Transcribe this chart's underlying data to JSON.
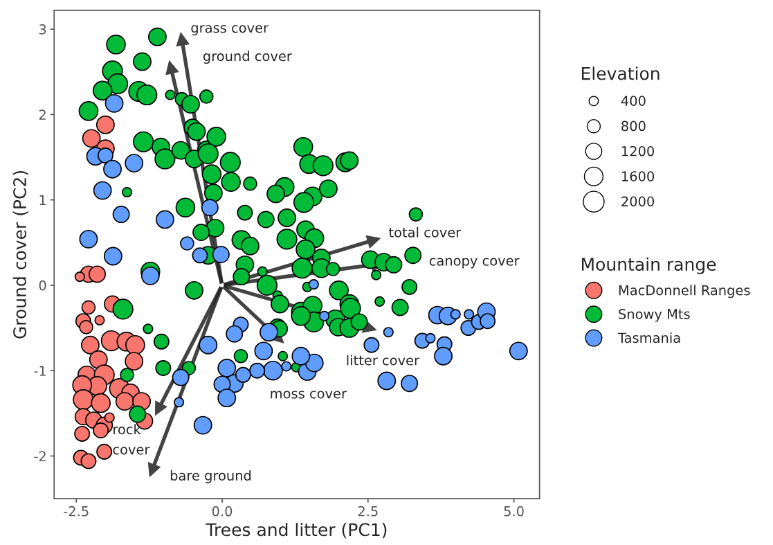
{
  "chart_data": {
    "type": "bubble",
    "xlabel": "Trees and litter (PC1)",
    "ylabel": "Ground cover (PC2)",
    "legend_title": [
      "Elevation",
      "Mountain range"
    ],
    "size_legend": [
      400,
      800,
      1200,
      1600,
      2000
    ],
    "xlim": [
      -2.88,
      5.44
    ],
    "ylim": [
      -2.5,
      3.22
    ],
    "xticks": [
      -2.5,
      {
        "value": 0,
        "label": "0.0"
      },
      2.5,
      {
        "value": 5,
        "label": "5.0"
      }
    ],
    "yticks": [
      -2,
      -1,
      0,
      1,
      2,
      3
    ],
    "grid": false,
    "legend": "right",
    "marker": "circle",
    "series": [
      {
        "name": "MacDonnell Ranges",
        "color": "#f8766d",
        "x": [
          -2.0,
          -2.24,
          -2.0,
          -2.29,
          -2.14,
          -2.44,
          -2.29,
          -1.88,
          -2.38,
          -2.1,
          -2.33,
          -2.26,
          -1.9,
          -1.64,
          -1.49,
          -1.51,
          -2.12,
          -2.32,
          -2.02,
          -2.14,
          -1.76,
          -1.57,
          -2.4,
          -2.38,
          -2.08,
          -1.67,
          -1.38,
          -1.33,
          -2.38,
          -2.2,
          -2.02,
          -1.93,
          -2.4,
          -2.08,
          -2.42,
          -2.29,
          -2.02
        ],
        "values": [
          1.88,
          1.72,
          1.6,
          0.13,
          0.13,
          0.1,
          -0.26,
          -0.22,
          -0.42,
          -0.41,
          -0.49,
          -0.7,
          -0.65,
          -0.66,
          -0.7,
          -0.89,
          -0.87,
          -1.05,
          -1.05,
          -1.18,
          -1.21,
          -1.26,
          -1.17,
          -1.34,
          -1.38,
          -1.36,
          -1.36,
          -1.59,
          -1.54,
          -1.58,
          -1.64,
          -1.55,
          -1.74,
          -1.7,
          -2.02,
          -2.06,
          -1.95
        ],
        "sizes": [
          1400,
          1400,
          1400,
          1200,
          1200,
          400,
          800,
          1200,
          1000,
          400,
          800,
          1400,
          1800,
          1600,
          1600,
          1400,
          1400,
          1400,
          1800,
          1600,
          1800,
          1400,
          1600,
          1800,
          1600,
          1400,
          1400,
          1200,
          1200,
          1200,
          1200,
          400,
          1000,
          1000,
          1000,
          1000,
          1000
        ]
      },
      {
        "name": "Snowy Mts",
        "color": "#00ba38",
        "x": [
          -1.11,
          -1.82,
          -1.37,
          -1.88,
          -1.79,
          -1.43,
          -1.29,
          -2.05,
          -2.29,
          -0.89,
          -0.69,
          -0.54,
          -0.27,
          -0.51,
          -0.44,
          -1.35,
          -1.05,
          -0.98,
          -0.71,
          -0.26,
          -0.48,
          -0.1,
          -0.24,
          -0.18,
          0.14,
          0.15,
          0.48,
          1.39,
          1.49,
          1.73,
          2.11,
          2.18,
          1.07,
          0.92,
          1.55,
          1.82,
          1.4,
          0.39,
          0.75,
          1.11,
          1.11,
          1.43,
          1.58,
          0.33,
          0.48,
          1.43,
          1.7,
          1.37,
          1.7,
          1.9,
          0.39,
          0.33,
          0.69,
          0.77,
          0.95,
          0.99,
          1.35,
          1.55,
          2.0,
          2.18,
          1.94,
          2.54,
          2.77,
          2.94,
          3.27,
          3.32,
          2.64,
          3.21,
          2.7,
          3.05,
          1.46,
          -0.63,
          -0.15,
          -0.12,
          -0.36,
          -0.24,
          -1.23,
          -0.48,
          -1.63,
          -1.7,
          -1.27,
          -1.04,
          -1.01,
          -1.63,
          -1.45,
          -0.57,
          0.32,
          0.95,
          2.2,
          1.99,
          2.18,
          2.35,
          1.57,
          1.35,
          0.98,
          1.27,
          1.04
        ],
        "values": [
          2.91,
          2.82,
          2.62,
          2.51,
          2.36,
          2.27,
          2.23,
          2.28,
          2.04,
          2.23,
          2.18,
          2.12,
          2.21,
          1.85,
          1.8,
          1.68,
          1.62,
          1.48,
          1.58,
          1.58,
          1.48,
          1.74,
          1.54,
          1.3,
          1.44,
          1.21,
          1.19,
          1.62,
          1.42,
          1.4,
          1.44,
          1.46,
          1.15,
          1.07,
          1.04,
          1.13,
          0.97,
          0.85,
          0.77,
          0.79,
          0.54,
          0.65,
          0.55,
          0.53,
          0.46,
          0.42,
          0.32,
          0.2,
          0.2,
          0.19,
          0.24,
          0.1,
          0.16,
          0.0,
          -0.12,
          -0.22,
          -0.31,
          -0.24,
          -0.06,
          -0.22,
          -0.4,
          0.3,
          0.27,
          0.24,
          0.35,
          0.83,
          0.12,
          -0.02,
          -0.19,
          -0.26,
          -0.02,
          0.91,
          1.08,
          0.67,
          0.62,
          0.35,
          0.16,
          -0.06,
          1.09,
          -0.28,
          -0.51,
          -0.66,
          -0.97,
          -1.05,
          -1.51,
          -0.97,
          -0.83,
          -0.49,
          -0.27,
          -0.49,
          -0.5,
          -0.43,
          -0.43,
          -0.36,
          -0.51,
          -0.96,
          -0.83
        ],
        "sizes": [
          1400,
          1600,
          1400,
          1800,
          1800,
          1800,
          1800,
          1600,
          1600,
          400,
          800,
          1400,
          800,
          1200,
          1400,
          1800,
          1400,
          1800,
          1400,
          1600,
          1400,
          1600,
          1800,
          1600,
          1800,
          1600,
          800,
          1600,
          1600,
          1800,
          1600,
          1400,
          1600,
          1400,
          1600,
          1400,
          1800,
          1000,
          1200,
          1400,
          1800,
          1400,
          1600,
          1600,
          1400,
          1600,
          1400,
          1800,
          1600,
          800,
          1400,
          1200,
          400,
          1800,
          400,
          1400,
          1600,
          1600,
          1600,
          1600,
          1600,
          1400,
          1400,
          1200,
          1200,
          800,
          400,
          1000,
          400,
          1200,
          400,
          1600,
          1400,
          1400,
          1200,
          1400,
          1600,
          1400,
          400,
          1800,
          400,
          1000,
          1000,
          800,
          1200,
          800,
          800,
          1200,
          1800,
          1400,
          1600,
          1200,
          1800,
          1600,
          1200,
          400,
          400
        ]
      },
      {
        "name": "Tasmania",
        "color": "#619cff",
        "x": [
          -1.85,
          -2.17,
          -2.0,
          -1.88,
          -1.51,
          -2.05,
          -1.73,
          -0.98,
          -0.21,
          -2.29,
          -1.87,
          -1.23,
          -0.6,
          -0.38,
          -0.02,
          -0.24,
          -0.71,
          -0.33,
          -0.74,
          0.32,
          0.21,
          0.8,
          0.71,
          0.87,
          0.08,
          0.21,
          0.0,
          0.08,
          0.6,
          0.36,
          1.1,
          1.46,
          1.58,
          1.35,
          1.57,
          1.75,
          2.56,
          2.85,
          3.43,
          3.57,
          3.81,
          3.79,
          2.82,
          3.21,
          5.08,
          3.69,
          3.87,
          4.0,
          4.23,
          4.22,
          4.4,
          4.53,
          4.55
        ],
        "values": [
          2.13,
          1.51,
          1.52,
          1.36,
          1.43,
          1.11,
          0.83,
          0.77,
          0.91,
          0.54,
          0.34,
          0.11,
          0.49,
          0.35,
          0.36,
          -0.7,
          -1.08,
          -1.64,
          -1.37,
          -0.46,
          -0.57,
          -0.55,
          -0.77,
          -1.0,
          -0.97,
          -1.15,
          -1.16,
          -1.32,
          -1.0,
          -1.05,
          -0.95,
          -1.01,
          -0.91,
          -0.83,
          0.01,
          -0.36,
          -0.7,
          -0.55,
          -0.65,
          -0.62,
          -0.69,
          -0.83,
          -1.12,
          -1.15,
          -0.77,
          -0.35,
          -0.36,
          -0.34,
          -0.34,
          -0.5,
          -0.43,
          -0.31,
          -0.42
        ],
        "sizes": [
          1400,
          1400,
          1000,
          1400,
          1400,
          1400,
          1200,
          1400,
          1200,
          1400,
          1400,
          1400,
          800,
          1000,
          1200,
          1400,
          1200,
          1400,
          400,
          1000,
          1200,
          1400,
          1400,
          1600,
          1400,
          1400,
          1200,
          1400,
          1000,
          1000,
          400,
          1400,
          1400,
          1400,
          400,
          400,
          1000,
          400,
          1000,
          400,
          1000,
          1400,
          1400,
          1200,
          1400,
          1400,
          1400,
          400,
          400,
          1000,
          1000,
          1400,
          1000
        ]
      }
    ],
    "annotations": [
      "grass cover",
      "ground cover",
      "total cover",
      "canopy cover",
      "litter cover",
      "moss cover",
      "rock\ncover",
      "bare ground"
    ]
  }
}
